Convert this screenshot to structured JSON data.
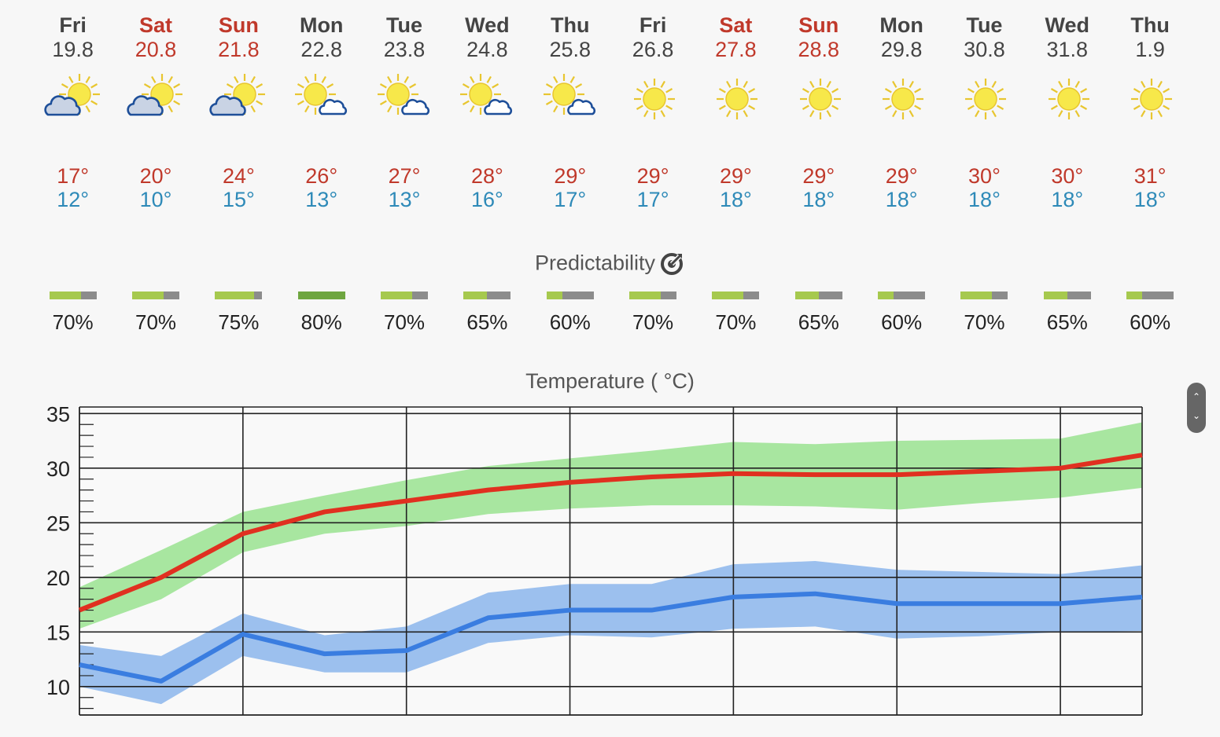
{
  "days": [
    {
      "name": "Fri",
      "date": "19.8",
      "weekend": false,
      "icon": "sun-cloud-dominant",
      "max": "17°",
      "min": "12°",
      "predictability": 70,
      "pct_label": "70%"
    },
    {
      "name": "Sat",
      "date": "20.8",
      "weekend": true,
      "icon": "sun-cloud-dominant",
      "max": "20°",
      "min": "10°",
      "predictability": 70,
      "pct_label": "70%"
    },
    {
      "name": "Sun",
      "date": "21.8",
      "weekend": true,
      "icon": "sun-cloud-dominant",
      "max": "24°",
      "min": "15°",
      "predictability": 75,
      "pct_label": "75%"
    },
    {
      "name": "Mon",
      "date": "22.8",
      "weekend": false,
      "icon": "sun-small-cloud",
      "max": "26°",
      "min": "13°",
      "predictability": 80,
      "pct_label": "80%"
    },
    {
      "name": "Tue",
      "date": "23.8",
      "weekend": false,
      "icon": "sun-small-cloud",
      "max": "27°",
      "min": "13°",
      "predictability": 70,
      "pct_label": "70%"
    },
    {
      "name": "Wed",
      "date": "24.8",
      "weekend": false,
      "icon": "sun-small-cloud",
      "max": "28°",
      "min": "16°",
      "predictability": 65,
      "pct_label": "65%"
    },
    {
      "name": "Thu",
      "date": "25.8",
      "weekend": false,
      "icon": "sun-small-cloud",
      "max": "29°",
      "min": "17°",
      "predictability": 60,
      "pct_label": "60%"
    },
    {
      "name": "Fri",
      "date": "26.8",
      "weekend": false,
      "icon": "sun",
      "max": "29°",
      "min": "17°",
      "predictability": 70,
      "pct_label": "70%"
    },
    {
      "name": "Sat",
      "date": "27.8",
      "weekend": true,
      "icon": "sun",
      "max": "29°",
      "min": "18°",
      "predictability": 70,
      "pct_label": "70%"
    },
    {
      "name": "Sun",
      "date": "28.8",
      "weekend": true,
      "icon": "sun",
      "max": "29°",
      "min": "18°",
      "predictability": 65,
      "pct_label": "65%"
    },
    {
      "name": "Mon",
      "date": "29.8",
      "weekend": false,
      "icon": "sun",
      "max": "29°",
      "min": "18°",
      "predictability": 60,
      "pct_label": "60%"
    },
    {
      "name": "Tue",
      "date": "30.8",
      "weekend": false,
      "icon": "sun",
      "max": "30°",
      "min": "18°",
      "predictability": 70,
      "pct_label": "70%"
    },
    {
      "name": "Wed",
      "date": "31.8",
      "weekend": false,
      "icon": "sun",
      "max": "30°",
      "min": "18°",
      "predictability": 65,
      "pct_label": "65%"
    },
    {
      "name": "Thu",
      "date": "1.9",
      "weekend": false,
      "icon": "sun",
      "max": "31°",
      "min": "18°",
      "predictability": 60,
      "pct_label": "60%"
    }
  ],
  "predictability_title": "Predictability",
  "colors": {
    "weekend": "#c0392b",
    "weekday": "#444444",
    "max_temp": "#c0392b",
    "min_temp": "#2e8ab8",
    "bar_fill": "#a6c94e",
    "bar_fill_high": "#6fa640",
    "bar_empty": "#8c8c8c",
    "max_line": "#e03020",
    "max_band": "#a8e6a0",
    "min_line": "#3a7de0",
    "min_band": "#9cc0ee",
    "sun": "#f7e84a",
    "cloud": "#1e4f99"
  },
  "chart_data": {
    "type": "line",
    "title": "Temperature ( °C)",
    "y_ticks": [
      "35",
      "30",
      "25",
      "20",
      "15",
      "10"
    ],
    "ylim": [
      7.4,
      35.6
    ],
    "grid": true,
    "series": [
      {
        "values": [
          17,
          20,
          24,
          26,
          27,
          28,
          28.7,
          29.2,
          29.5,
          29.4,
          29.4,
          29.7,
          30,
          31.2
        ],
        "band_low": [
          15.3,
          18,
          22.3,
          24,
          24.7,
          25.8,
          26.3,
          26.6,
          26.6,
          26.5,
          26.2,
          26.8,
          27.3,
          28.2
        ],
        "band_high": [
          19.1,
          22.5,
          26,
          27.5,
          28.9,
          30.2,
          30.9,
          31.6,
          32.4,
          32.2,
          32.5,
          32.6,
          32.7,
          34.2
        ]
      },
      {
        "values": [
          12,
          10.5,
          14.8,
          13,
          13.3,
          16.3,
          17,
          17,
          18.2,
          18.5,
          17.6,
          17.6,
          17.6,
          18.2
        ],
        "band_low": [
          10,
          8.4,
          12.8,
          11.3,
          11.3,
          14,
          14.7,
          14.5,
          15.3,
          15.5,
          14.4,
          14.6,
          15,
          15.1
        ],
        "band_high": [
          13.8,
          12.8,
          16.7,
          14.7,
          15.5,
          18.6,
          19.4,
          19.4,
          21.2,
          21.5,
          20.7,
          20.5,
          20.3,
          21.1
        ]
      }
    ]
  }
}
